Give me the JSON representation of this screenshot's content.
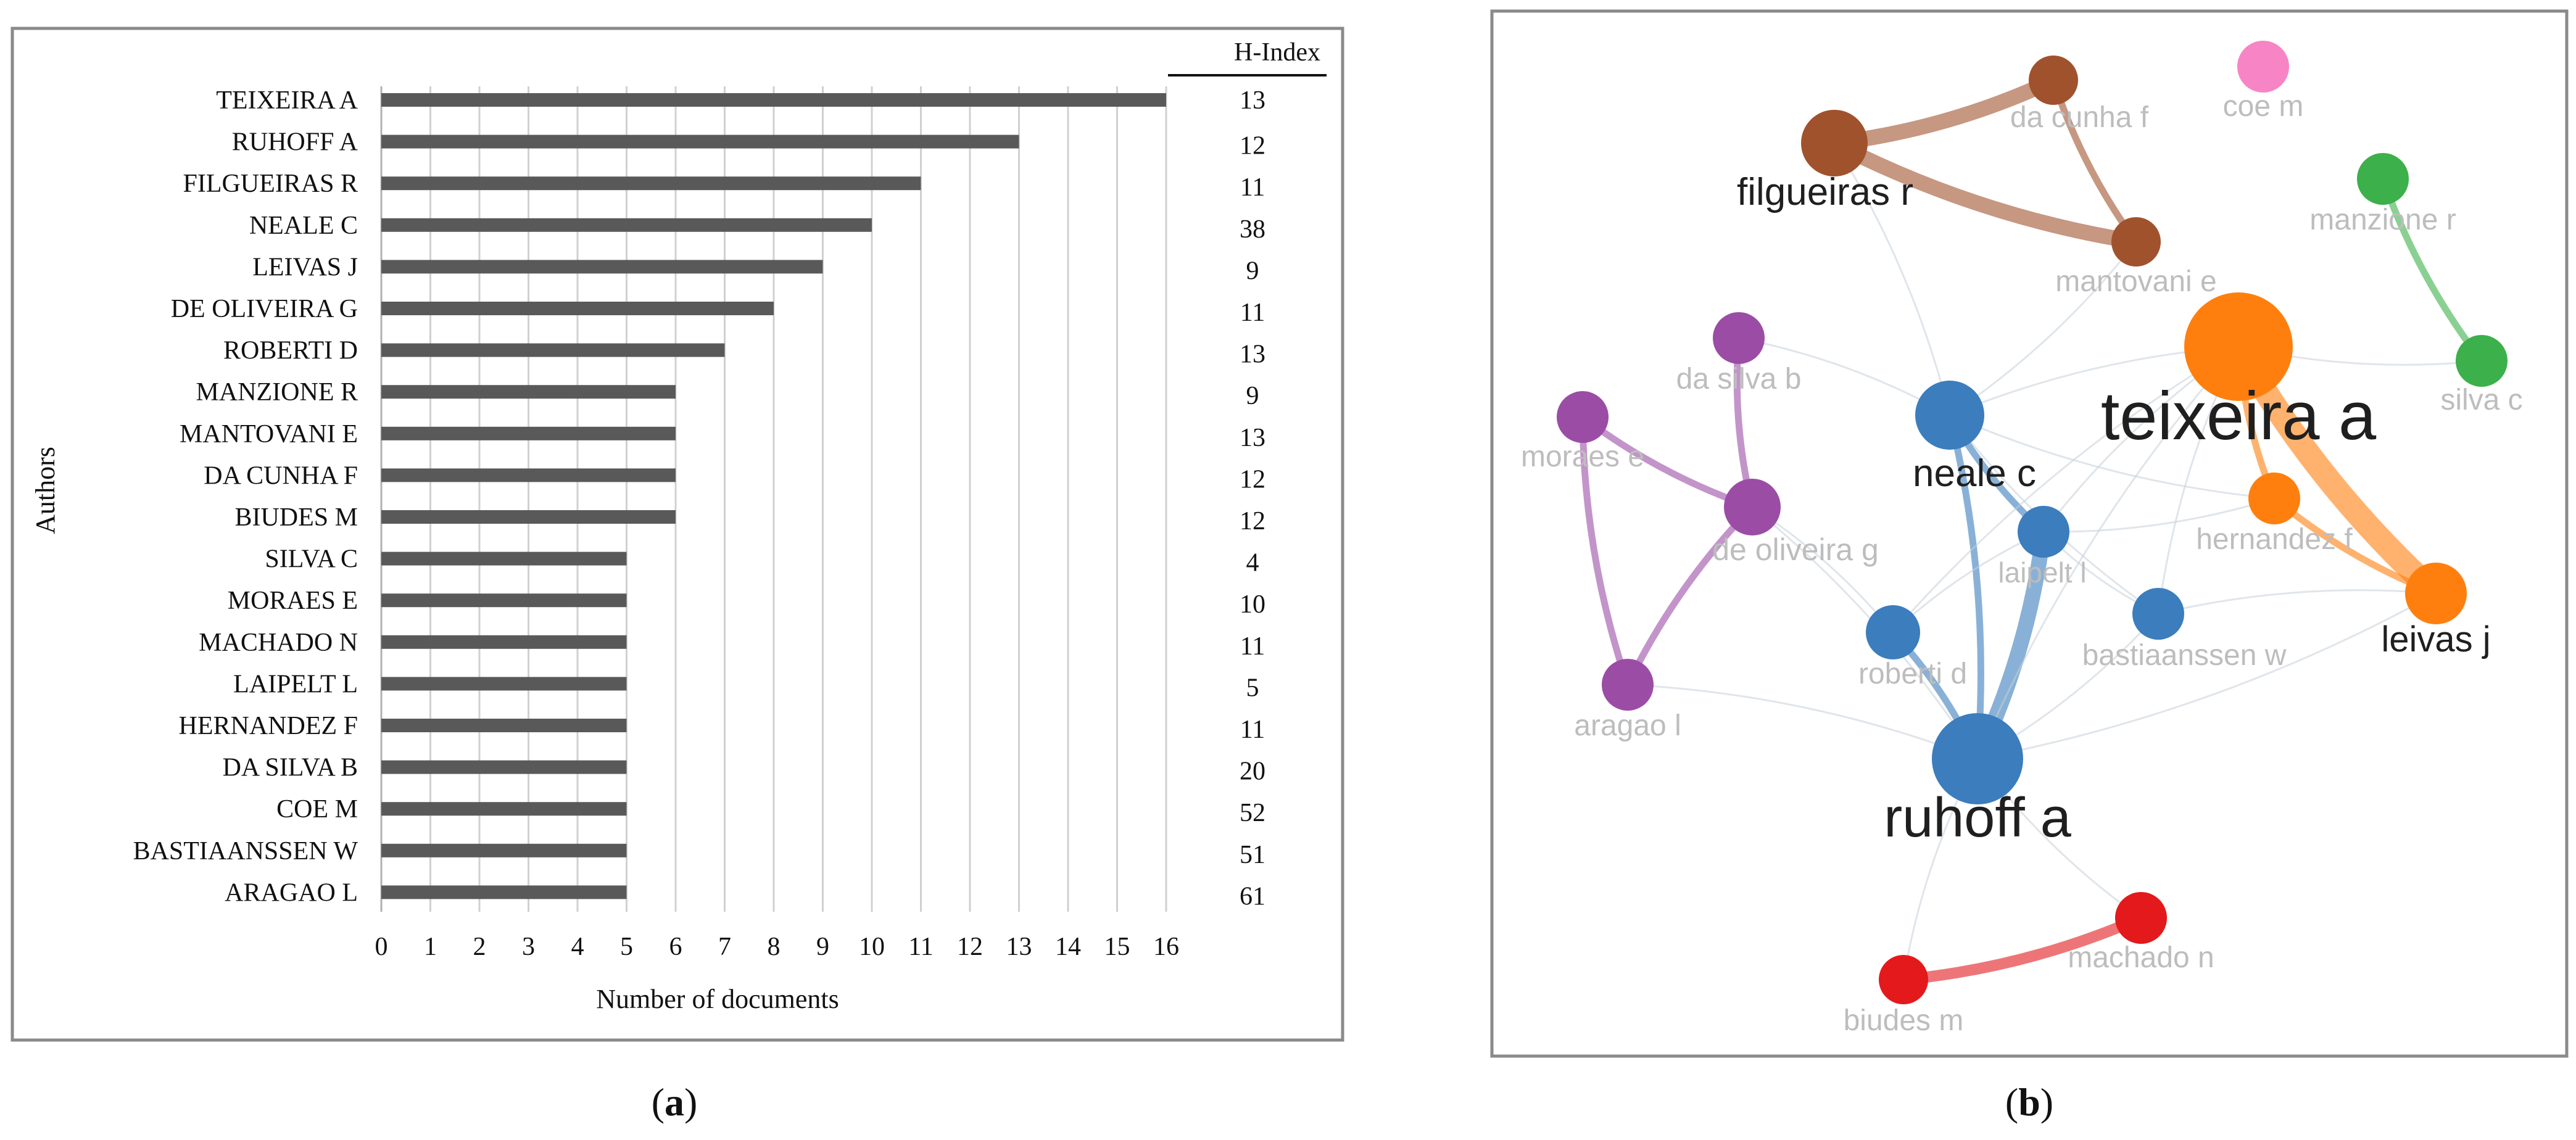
{
  "chart_data": [
    {
      "type": "bar",
      "orientation": "horizontal",
      "panel_label": "(a)",
      "panel_letter": "a",
      "xlabel": "Number of documents",
      "ylabel": "Authors",
      "xlim": [
        0,
        16
      ],
      "xticks": [
        0,
        1,
        2,
        3,
        4,
        5,
        6,
        7,
        8,
        9,
        10,
        11,
        12,
        13,
        14,
        15,
        16
      ],
      "grid": "vertical",
      "bar_color": "#595959",
      "categories": [
        "TEIXEIRA A",
        "RUHOFF A",
        "FILGUEIRAS R",
        "NEALE C",
        "LEIVAS J",
        "DE OLIVEIRA G",
        "ROBERTI D",
        "MANZIONE R",
        "MANTOVANI E",
        "DA CUNHA F",
        "BIUDES M",
        "SILVA C",
        "MORAES E",
        "MACHADO N",
        "LAIPELT L",
        "HERNANDEZ F",
        "DA SILVA B",
        "COE M",
        "BASTIAANSSEN W",
        "ARAGAO L"
      ],
      "values": [
        16,
        13,
        11,
        10,
        9,
        8,
        7,
        6,
        6,
        6,
        6,
        5,
        5,
        5,
        5,
        5,
        5,
        5,
        5,
        5
      ],
      "side_table": {
        "header": "H-Index",
        "values": [
          "13",
          "12",
          "11",
          "38",
          "9",
          "11",
          "13",
          "9",
          "13",
          "12",
          "12",
          "4",
          "10",
          "11",
          "5",
          "11",
          "20",
          "52",
          "51",
          "61"
        ]
      }
    },
    {
      "type": "network",
      "panel_label": "(b)",
      "panel_letter": "b",
      "clusters": {
        "brown": "#a0522d",
        "orange": "#ff7f0e",
        "green": "#3cb04a",
        "pink": "#f784c5",
        "purple": "#9b4da6",
        "blue": "#3b7dbd",
        "red": "#e3191c"
      },
      "nodes": [
        {
          "id": "teixeira",
          "label": "teixeira a",
          "cluster": "orange",
          "weight": 16,
          "emphasis": true
        },
        {
          "id": "ruhoff",
          "label": "ruhoff a",
          "cluster": "blue",
          "weight": 13,
          "emphasis": true
        },
        {
          "id": "filgueiras",
          "label": "filgueiras r",
          "cluster": "brown",
          "weight": 11,
          "emphasis": true
        },
        {
          "id": "neale",
          "label": "neale c",
          "cluster": "blue",
          "weight": 10,
          "emphasis": true
        },
        {
          "id": "leivas",
          "label": "leivas j",
          "cluster": "orange",
          "weight": 9,
          "emphasis": true
        },
        {
          "id": "deoliveira",
          "label": "de oliveira g",
          "cluster": "purple",
          "weight": 8,
          "emphasis": false
        },
        {
          "id": "roberti",
          "label": "roberti d",
          "cluster": "blue",
          "weight": 7,
          "emphasis": false
        },
        {
          "id": "manzione",
          "label": "manzione r",
          "cluster": "green",
          "weight": 6,
          "emphasis": false
        },
        {
          "id": "mantovani",
          "label": "mantovani e",
          "cluster": "brown",
          "weight": 6,
          "emphasis": false
        },
        {
          "id": "dacunha",
          "label": "da cunha f",
          "cluster": "brown",
          "weight": 6,
          "emphasis": false
        },
        {
          "id": "biudes",
          "label": "biudes m",
          "cluster": "red",
          "weight": 6,
          "emphasis": false
        },
        {
          "id": "silva",
          "label": "silva c",
          "cluster": "green",
          "weight": 5,
          "emphasis": false
        },
        {
          "id": "moraes",
          "label": "moraes e",
          "cluster": "purple",
          "weight": 5,
          "emphasis": false
        },
        {
          "id": "machado",
          "label": "machado n",
          "cluster": "red",
          "weight": 5,
          "emphasis": false
        },
        {
          "id": "laipelt",
          "label": "laipelt l",
          "cluster": "blue",
          "weight": 5,
          "emphasis": false
        },
        {
          "id": "hernandez",
          "label": "hernandez f",
          "cluster": "orange",
          "weight": 5,
          "emphasis": false
        },
        {
          "id": "dasilva",
          "label": "da silva b",
          "cluster": "purple",
          "weight": 5,
          "emphasis": false
        },
        {
          "id": "coe",
          "label": "coe m",
          "cluster": "pink",
          "weight": 5,
          "emphasis": false
        },
        {
          "id": "bastiaanssen",
          "label": "bastiaanssen w",
          "cluster": "blue",
          "weight": 5,
          "emphasis": false
        },
        {
          "id": "aragao",
          "label": "aragao l",
          "cluster": "purple",
          "weight": 5,
          "emphasis": false
        }
      ],
      "links": [
        {
          "source": "teixeira",
          "target": "leivas",
          "strength": 5,
          "cluster": "orange"
        },
        {
          "source": "filgueiras",
          "target": "dacunha",
          "strength": 3,
          "cluster": "brown"
        },
        {
          "source": "filgueiras",
          "target": "mantovani",
          "strength": 3,
          "cluster": "brown"
        },
        {
          "source": "dacunha",
          "target": "mantovani",
          "strength": 1,
          "cluster": "brown"
        },
        {
          "source": "manzione",
          "target": "silva",
          "strength": 1,
          "cluster": "green"
        },
        {
          "source": "ruhoff",
          "target": "laipelt",
          "strength": 3,
          "cluster": "blue"
        },
        {
          "source": "ruhoff",
          "target": "neale",
          "strength": 1,
          "cluster": "blue"
        },
        {
          "source": "ruhoff",
          "target": "roberti",
          "strength": 1,
          "cluster": "blue"
        },
        {
          "source": "neale",
          "target": "laipelt",
          "strength": 1,
          "cluster": "blue"
        },
        {
          "source": "biudes",
          "target": "machado",
          "strength": 2,
          "cluster": "red"
        },
        {
          "source": "moraes",
          "target": "deoliveira",
          "strength": 1,
          "cluster": "purple"
        },
        {
          "source": "dasilva",
          "target": "deoliveira",
          "strength": 1,
          "cluster": "purple"
        },
        {
          "source": "deoliveira",
          "target": "aragao",
          "strength": 1,
          "cluster": "purple"
        },
        {
          "source": "moraes",
          "target": "aragao",
          "strength": 1,
          "cluster": "purple"
        },
        {
          "source": "hernandez",
          "target": "leivas",
          "strength": 1,
          "cluster": "orange"
        },
        {
          "source": "teixeira",
          "target": "hernandez",
          "strength": 1,
          "cluster": "orange"
        },
        {
          "source": "teixeira",
          "target": "neale",
          "strength": 1,
          "cluster": "grey"
        },
        {
          "source": "teixeira",
          "target": "laipelt",
          "strength": 1,
          "cluster": "grey"
        },
        {
          "source": "teixeira",
          "target": "ruhoff",
          "strength": 1,
          "cluster": "grey"
        },
        {
          "source": "teixeira",
          "target": "bastiaanssen",
          "strength": 1,
          "cluster": "grey"
        },
        {
          "source": "teixeira",
          "target": "silva",
          "strength": 1,
          "cluster": "grey"
        },
        {
          "source": "teixeira",
          "target": "roberti",
          "strength": 1,
          "cluster": "grey"
        },
        {
          "source": "neale",
          "target": "filgueiras",
          "strength": 1,
          "cluster": "grey"
        },
        {
          "source": "neale",
          "target": "mantovani",
          "strength": 1,
          "cluster": "grey"
        },
        {
          "source": "neale",
          "target": "dasilva",
          "strength": 1,
          "cluster": "grey"
        },
        {
          "source": "neale",
          "target": "hernandez",
          "strength": 1,
          "cluster": "grey"
        },
        {
          "source": "neale",
          "target": "bastiaanssen",
          "strength": 1,
          "cluster": "grey"
        },
        {
          "source": "laipelt",
          "target": "hernandez",
          "strength": 1,
          "cluster": "grey"
        },
        {
          "source": "ruhoff",
          "target": "aragao",
          "strength": 1,
          "cluster": "grey"
        },
        {
          "source": "ruhoff",
          "target": "machado",
          "strength": 1,
          "cluster": "grey"
        },
        {
          "source": "ruhoff",
          "target": "biudes",
          "strength": 1,
          "cluster": "grey"
        },
        {
          "source": "ruhoff",
          "target": "bastiaanssen",
          "strength": 1,
          "cluster": "grey"
        },
        {
          "source": "ruhoff",
          "target": "leivas",
          "strength": 1,
          "cluster": "grey"
        },
        {
          "source": "ruhoff",
          "target": "deoliveira",
          "strength": 1,
          "cluster": "grey"
        },
        {
          "source": "roberti",
          "target": "deoliveira",
          "strength": 1,
          "cluster": "grey"
        },
        {
          "source": "leivas",
          "target": "bastiaanssen",
          "strength": 1,
          "cluster": "grey"
        },
        {
          "source": "laipelt",
          "target": "bastiaanssen",
          "strength": 1,
          "cluster": "grey"
        },
        {
          "source": "laipelt",
          "target": "roberti",
          "strength": 1,
          "cluster": "grey"
        }
      ]
    }
  ]
}
